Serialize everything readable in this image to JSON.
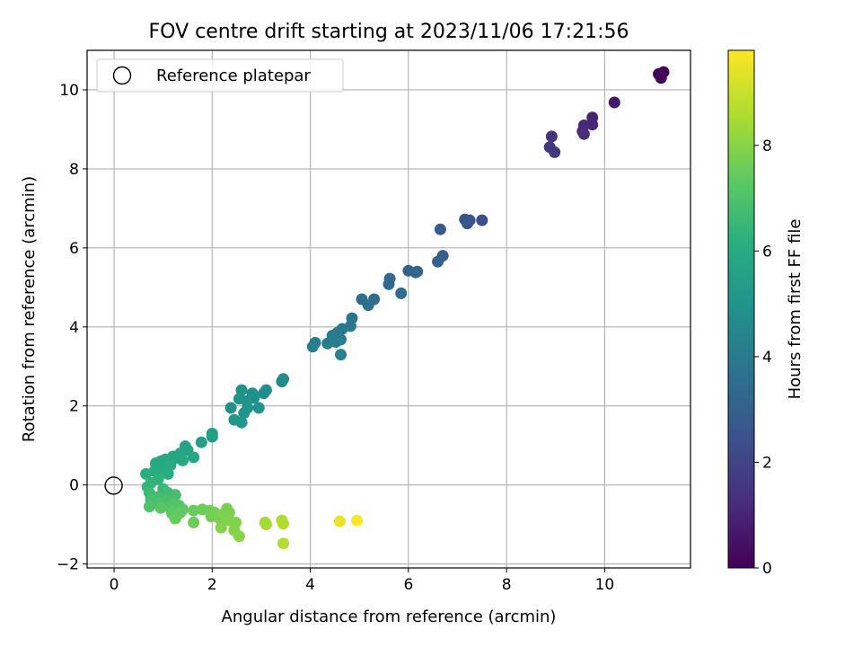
{
  "chart_data": {
    "type": "scatter",
    "title": "FOV centre drift starting at 2023/11/06 17:21:56",
    "xlabel": "Angular distance from reference (arcmin)",
    "ylabel": "Rotation from reference (arcmin)",
    "xlim": [
      -0.55,
      11.75
    ],
    "ylim": [
      -2.1,
      11.0
    ],
    "xticks": [
      "0",
      "2",
      "4",
      "6",
      "8",
      "10"
    ],
    "yticks": [
      "−2",
      "0",
      "2",
      "4",
      "6",
      "8",
      "10"
    ],
    "grid": true,
    "legend": {
      "position": "top-left",
      "entries": [
        "Reference platepar"
      ]
    },
    "reference_point": {
      "x": 0,
      "y": 0
    },
    "colorbar": {
      "label": "Hours from first FF file",
      "colormap": "viridis",
      "range": [
        0,
        9.8
      ],
      "ticks": [
        "0",
        "2",
        "4",
        "6",
        "8"
      ]
    },
    "series": [
      {
        "points": [
          {
            "x": 11.2,
            "y": 10.45,
            "h": 0.05
          },
          {
            "x": 11.15,
            "y": 10.3,
            "h": 0.1
          },
          {
            "x": 11.1,
            "y": 10.4,
            "h": 0.15
          },
          {
            "x": 10.2,
            "y": 9.68,
            "h": 0.7
          },
          {
            "x": 9.75,
            "y": 9.3,
            "h": 1.0
          },
          {
            "x": 9.75,
            "y": 9.12,
            "h": 1.05
          },
          {
            "x": 9.58,
            "y": 9.1,
            "h": 1.15
          },
          {
            "x": 9.55,
            "y": 8.95,
            "h": 1.2
          },
          {
            "x": 9.58,
            "y": 8.88,
            "h": 1.25
          },
          {
            "x": 8.92,
            "y": 8.82,
            "h": 1.5
          },
          {
            "x": 8.88,
            "y": 8.55,
            "h": 1.55
          },
          {
            "x": 8.98,
            "y": 8.42,
            "h": 1.6
          },
          {
            "x": 7.5,
            "y": 6.7,
            "h": 2.4
          },
          {
            "x": 7.25,
            "y": 6.7,
            "h": 2.5
          },
          {
            "x": 7.15,
            "y": 6.72,
            "h": 2.55
          },
          {
            "x": 7.2,
            "y": 6.62,
            "h": 2.6
          },
          {
            "x": 6.65,
            "y": 6.47,
            "h": 2.8
          },
          {
            "x": 6.7,
            "y": 5.8,
            "h": 2.9
          },
          {
            "x": 6.6,
            "y": 5.65,
            "h": 2.95
          },
          {
            "x": 6.18,
            "y": 5.4,
            "h": 3.1
          },
          {
            "x": 6.0,
            "y": 5.42,
            "h": 3.15
          },
          {
            "x": 6.15,
            "y": 5.38,
            "h": 3.2
          },
          {
            "x": 5.62,
            "y": 5.22,
            "h": 3.35
          },
          {
            "x": 5.6,
            "y": 5.08,
            "h": 3.4
          },
          {
            "x": 5.85,
            "y": 4.85,
            "h": 3.45
          },
          {
            "x": 5.3,
            "y": 4.7,
            "h": 3.55
          },
          {
            "x": 5.05,
            "y": 4.7,
            "h": 3.6
          },
          {
            "x": 5.18,
            "y": 4.55,
            "h": 3.65
          },
          {
            "x": 4.85,
            "y": 4.22,
            "h": 3.8
          },
          {
            "x": 4.82,
            "y": 4.02,
            "h": 3.85
          },
          {
            "x": 4.65,
            "y": 3.95,
            "h": 3.9
          },
          {
            "x": 4.55,
            "y": 3.85,
            "h": 3.95
          },
          {
            "x": 4.45,
            "y": 3.78,
            "h": 4.0
          },
          {
            "x": 4.52,
            "y": 3.62,
            "h": 4.05
          },
          {
            "x": 4.62,
            "y": 3.68,
            "h": 4.1
          },
          {
            "x": 4.35,
            "y": 3.58,
            "h": 4.12
          },
          {
            "x": 4.1,
            "y": 3.6,
            "h": 4.15
          },
          {
            "x": 4.05,
            "y": 3.5,
            "h": 4.2
          },
          {
            "x": 4.62,
            "y": 3.3,
            "h": 4.25
          },
          {
            "x": 3.45,
            "y": 2.68,
            "h": 4.6
          },
          {
            "x": 3.42,
            "y": 2.62,
            "h": 4.65
          },
          {
            "x": 3.1,
            "y": 2.4,
            "h": 4.75
          },
          {
            "x": 3.05,
            "y": 2.32,
            "h": 4.8
          },
          {
            "x": 2.82,
            "y": 2.32,
            "h": 4.85
          },
          {
            "x": 2.6,
            "y": 2.4,
            "h": 4.9
          },
          {
            "x": 2.85,
            "y": 2.2,
            "h": 4.92
          },
          {
            "x": 2.7,
            "y": 2.12,
            "h": 4.95
          },
          {
            "x": 2.55,
            "y": 2.18,
            "h": 4.97
          },
          {
            "x": 2.38,
            "y": 1.95,
            "h": 5.0
          },
          {
            "x": 2.95,
            "y": 1.95,
            "h": 5.02
          },
          {
            "x": 2.72,
            "y": 1.95,
            "h": 5.05
          },
          {
            "x": 2.65,
            "y": 1.82,
            "h": 5.08
          },
          {
            "x": 2.45,
            "y": 1.65,
            "h": 5.1
          },
          {
            "x": 2.6,
            "y": 1.58,
            "h": 5.12
          },
          {
            "x": 2.0,
            "y": 1.3,
            "h": 5.4
          },
          {
            "x": 2.0,
            "y": 1.22,
            "h": 5.45
          },
          {
            "x": 1.78,
            "y": 1.08,
            "h": 5.55
          },
          {
            "x": 1.45,
            "y": 0.98,
            "h": 5.65
          },
          {
            "x": 1.5,
            "y": 0.88,
            "h": 5.7
          },
          {
            "x": 1.35,
            "y": 0.8,
            "h": 5.75
          },
          {
            "x": 1.2,
            "y": 0.72,
            "h": 5.8
          },
          {
            "x": 1.3,
            "y": 0.68,
            "h": 5.82
          },
          {
            "x": 1.62,
            "y": 0.7,
            "h": 5.85
          },
          {
            "x": 1.4,
            "y": 0.62,
            "h": 5.88
          },
          {
            "x": 1.05,
            "y": 0.65,
            "h": 5.9
          },
          {
            "x": 0.95,
            "y": 0.6,
            "h": 5.92
          },
          {
            "x": 0.85,
            "y": 0.55,
            "h": 5.95
          },
          {
            "x": 1.15,
            "y": 0.5,
            "h": 5.98
          },
          {
            "x": 0.95,
            "y": 0.4,
            "h": 6.0
          },
          {
            "x": 0.82,
            "y": 0.35,
            "h": 6.05
          },
          {
            "x": 1.1,
            "y": 0.28,
            "h": 6.1
          },
          {
            "x": 0.65,
            "y": 0.28,
            "h": 6.15
          },
          {
            "x": 0.9,
            "y": 0.15,
            "h": 6.25
          },
          {
            "x": 0.75,
            "y": 0.05,
            "h": 6.35
          },
          {
            "x": 0.68,
            "y": -0.05,
            "h": 6.45
          },
          {
            "x": 1.0,
            "y": -0.1,
            "h": 6.55
          },
          {
            "x": 0.72,
            "y": -0.2,
            "h": 6.65
          },
          {
            "x": 1.1,
            "y": -0.2,
            "h": 6.7
          },
          {
            "x": 0.9,
            "y": -0.3,
            "h": 6.75
          },
          {
            "x": 1.25,
            "y": -0.25,
            "h": 6.8
          },
          {
            "x": 0.75,
            "y": -0.38,
            "h": 6.85
          },
          {
            "x": 1.05,
            "y": -0.4,
            "h": 6.9
          },
          {
            "x": 0.9,
            "y": -0.45,
            "h": 6.95
          },
          {
            "x": 0.72,
            "y": -0.55,
            "h": 7.0
          },
          {
            "x": 1.2,
            "y": -0.5,
            "h": 7.05
          },
          {
            "x": 1.32,
            "y": -0.52,
            "h": 7.1
          },
          {
            "x": 1.15,
            "y": -0.6,
            "h": 7.15
          },
          {
            "x": 0.95,
            "y": -0.58,
            "h": 7.2
          },
          {
            "x": 1.4,
            "y": -0.62,
            "h": 7.25
          },
          {
            "x": 1.18,
            "y": -0.72,
            "h": 7.3
          },
          {
            "x": 1.28,
            "y": -0.78,
            "h": 7.35
          },
          {
            "x": 1.35,
            "y": -0.7,
            "h": 7.4
          },
          {
            "x": 1.25,
            "y": -0.85,
            "h": 7.45
          },
          {
            "x": 1.62,
            "y": -0.65,
            "h": 7.5
          },
          {
            "x": 1.8,
            "y": -0.62,
            "h": 7.55
          },
          {
            "x": 1.95,
            "y": -0.65,
            "h": 7.6
          },
          {
            "x": 2.05,
            "y": -0.7,
            "h": 7.65
          },
          {
            "x": 1.98,
            "y": -0.8,
            "h": 7.7
          },
          {
            "x": 2.15,
            "y": -0.85,
            "h": 7.75
          },
          {
            "x": 2.3,
            "y": -0.6,
            "h": 7.8
          },
          {
            "x": 2.35,
            "y": -0.7,
            "h": 7.82
          },
          {
            "x": 2.2,
            "y": -0.75,
            "h": 7.85
          },
          {
            "x": 2.35,
            "y": -0.9,
            "h": 7.88
          },
          {
            "x": 2.48,
            "y": -0.95,
            "h": 7.9
          },
          {
            "x": 2.18,
            "y": -1.08,
            "h": 7.92
          },
          {
            "x": 2.45,
            "y": -1.15,
            "h": 7.95
          },
          {
            "x": 2.55,
            "y": -1.3,
            "h": 8.0
          },
          {
            "x": 1.62,
            "y": -0.95,
            "h": 7.6
          },
          {
            "x": 3.08,
            "y": -0.95,
            "h": 8.4
          },
          {
            "x": 3.1,
            "y": -1.0,
            "h": 8.45
          },
          {
            "x": 3.42,
            "y": -0.9,
            "h": 8.6
          },
          {
            "x": 3.45,
            "y": -0.98,
            "h": 8.65
          },
          {
            "x": 3.45,
            "y": -1.48,
            "h": 8.7
          },
          {
            "x": 4.6,
            "y": -0.92,
            "h": 9.5
          },
          {
            "x": 4.95,
            "y": -0.9,
            "h": 9.75
          }
        ]
      }
    ]
  }
}
